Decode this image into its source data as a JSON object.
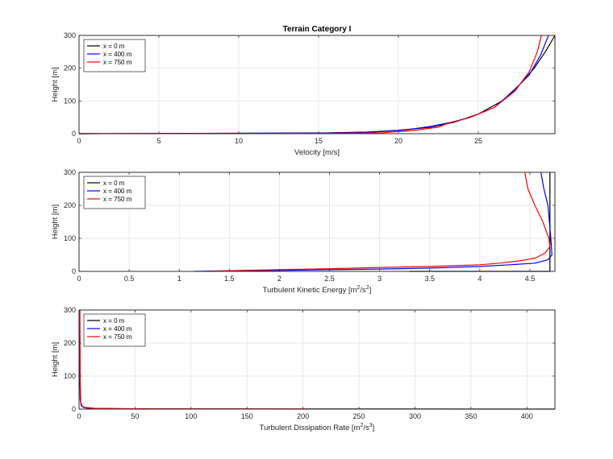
{
  "chart_data": [
    {
      "type": "line",
      "title": "Terrain Category I",
      "xlabel": "Velocity [m/s]",
      "xlabel_sup": "",
      "xlabel_end": "",
      "ylabel": "Height [m]",
      "xlim": [
        0,
        29.8
      ],
      "ylim": [
        0,
        300
      ],
      "xticks": [
        0,
        5,
        10,
        15,
        20,
        25
      ],
      "xtick_labels": [
        "0",
        "5",
        "10",
        "15",
        "20",
        "25"
      ],
      "yticks": [
        0,
        100,
        200,
        300
      ],
      "ytick_labels": [
        "0",
        "100",
        "200",
        "300"
      ],
      "grid": true,
      "legend": "top-left",
      "series": [
        {
          "name": "x = 0 m",
          "color": "#000000",
          "x": [
            0,
            15,
            18,
            20,
            22,
            23.5,
            25,
            26.5,
            27.6,
            28.5,
            29.2,
            29.8
          ],
          "y": [
            0,
            2,
            5,
            10,
            20,
            35,
            60,
            100,
            150,
            200,
            250,
            300
          ]
        },
        {
          "name": "x = 400 m",
          "color": "#0000ff",
          "x": [
            0,
            15,
            18,
            19.5,
            20.5,
            22,
            23.3,
            24.5,
            26,
            27.2,
            28.2,
            28.9,
            29.4
          ],
          "y": [
            0,
            2,
            4,
            8,
            12,
            22,
            35,
            50,
            80,
            130,
            180,
            240,
            300
          ]
        },
        {
          "name": "x = 750 m",
          "color": "#ff0000",
          "x": [
            0,
            15,
            19,
            21,
            22.5,
            23,
            24.5,
            26,
            27.3,
            28.2,
            28.7,
            28.95
          ],
          "y": [
            0,
            1,
            3,
            10,
            20,
            30,
            50,
            80,
            130,
            190,
            250,
            300
          ]
        }
      ]
    },
    {
      "type": "line",
      "title": "",
      "xlabel": "Turbulent Kinetic Energy [m",
      "xlabel_sup": "2",
      "xlabel_end": "/s",
      "xlabel_sup2": "2",
      "xlabel_tail": "]",
      "ylabel": "Height [m]",
      "xlim": [
        0,
        4.75
      ],
      "ylim": [
        0,
        300
      ],
      "xticks": [
        0,
        0.5,
        1,
        1.5,
        2,
        2.5,
        3,
        3.5,
        4,
        4.5
      ],
      "xtick_labels": [
        "0",
        "0.5",
        "1",
        "1.5",
        "2",
        "2.5",
        "3",
        "3.5",
        "4",
        "4.5"
      ],
      "yticks": [
        0,
        100,
        200,
        300
      ],
      "ytick_labels": [
        "0",
        "100",
        "200",
        "300"
      ],
      "grid": true,
      "legend": "top-left",
      "series": [
        {
          "name": "x = 0 m",
          "color": "#000000",
          "x": [
            3.3,
            4.7,
            4.7,
            4.7
          ],
          "y": [
            0,
            0,
            150,
            300
          ]
        },
        {
          "name": "x = 400 m",
          "color": "#0000ff",
          "x": [
            1.15,
            1.5,
            2,
            2.5,
            3,
            3.5,
            4,
            4.3,
            4.55,
            4.68,
            4.72,
            4.71,
            4.68,
            4.64,
            4.61
          ],
          "y": [
            0,
            2,
            3,
            5,
            7,
            10,
            15,
            20,
            25,
            35,
            50,
            100,
            200,
            250,
            300
          ]
        },
        {
          "name": "x = 750 m",
          "color": "#ff0000",
          "x": [
            1.3,
            1.6,
            2,
            2.5,
            3,
            3.5,
            4,
            4.2,
            4.4,
            4.55,
            4.65,
            4.7,
            4.69,
            4.63,
            4.55,
            4.48,
            4.45
          ],
          "y": [
            0,
            3,
            5,
            8,
            12,
            15,
            20,
            25,
            32,
            40,
            55,
            75,
            100,
            150,
            200,
            250,
            300
          ]
        }
      ]
    },
    {
      "type": "line",
      "title": "",
      "xlabel": "Turbulent Dissipation Rate [m",
      "xlabel_sup": "2",
      "xlabel_end": "/s",
      "xlabel_sup2": "3",
      "xlabel_tail": "]",
      "ylabel": "Height [m]",
      "xlim": [
        0,
        425
      ],
      "ylim": [
        0,
        300
      ],
      "xticks": [
        0,
        50,
        100,
        150,
        200,
        250,
        300,
        350,
        400
      ],
      "xtick_labels": [
        "0",
        "50",
        "100",
        "150",
        "200",
        "250",
        "300",
        "350",
        "400"
      ],
      "yticks": [
        0,
        100,
        200,
        300
      ],
      "ytick_labels": [
        "0",
        "100",
        "200",
        "300"
      ],
      "grid": true,
      "legend": "top-left",
      "series": [
        {
          "name": "x = 0 m",
          "color": "#000000",
          "x": [
            425,
            200,
            50,
            15,
            5,
            2,
            1,
            0.8,
            0.6
          ],
          "y": [
            0,
            0.5,
            1,
            2,
            5,
            10,
            30,
            100,
            300
          ]
        },
        {
          "name": "x = 400 m",
          "color": "#0000ff",
          "x": [
            60,
            20,
            8,
            4,
            2,
            1.2,
            0.8,
            0.6
          ],
          "y": [
            0,
            1,
            2,
            5,
            10,
            30,
            100,
            300
          ]
        },
        {
          "name": "x = 750 m",
          "color": "#ff0000",
          "x": [
            205,
            100,
            40,
            15,
            6,
            3,
            1.5,
            1,
            0.8
          ],
          "y": [
            0,
            0.5,
            1,
            2,
            4,
            8,
            20,
            100,
            300
          ]
        }
      ]
    }
  ]
}
